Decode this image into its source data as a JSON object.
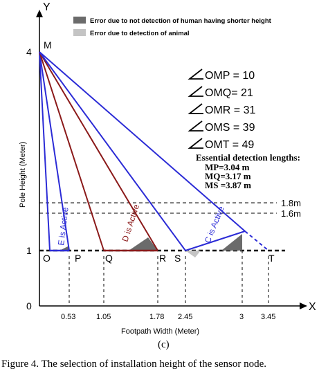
{
  "axes": {
    "y_label": "Y",
    "x_label": "X",
    "y_title": "Pole Height  (Meter)",
    "x_title": "Footpath Width (Meter)",
    "y_ticks": [
      "0",
      "1",
      "4"
    ],
    "x_ticks": [
      "0.53",
      "1.05",
      "1.78",
      "2.45",
      "3",
      "3.45"
    ]
  },
  "points": {
    "M": "M",
    "O": "O",
    "P": "P",
    "Q": "Q",
    "R": "R",
    "S": "S",
    "T": "T"
  },
  "height_lines": {
    "h1": "1.8m",
    "h2": "1.6m"
  },
  "legend": {
    "dark": "Error due to not detection of human having shorter height",
    "light": "Error due to detection of  animal"
  },
  "angles": [
    {
      "label": "OMP = 10"
    },
    {
      "label": "OMQ= 21"
    },
    {
      "label": "OMR = 31"
    },
    {
      "label": "OMS = 39"
    },
    {
      "label": "OMT = 49"
    }
  ],
  "detection": {
    "title": "Essential detection lengths:",
    "mp": "MP=3.04 m",
    "mq": "MQ=3.17 m",
    "ms": "MS =3.87 m"
  },
  "active_labels": {
    "e": "E is Active",
    "d": "D is Active",
    "c": "C is Active"
  },
  "subfigure": "(c)",
  "caption": "Figure 4. The selection of installation height of the sensor node.",
  "colors": {
    "blue": "#2b2bd6",
    "darkred": "#8b1a1a",
    "dark_error": "#6b6b6b",
    "light_error": "#c4c4c4"
  }
}
